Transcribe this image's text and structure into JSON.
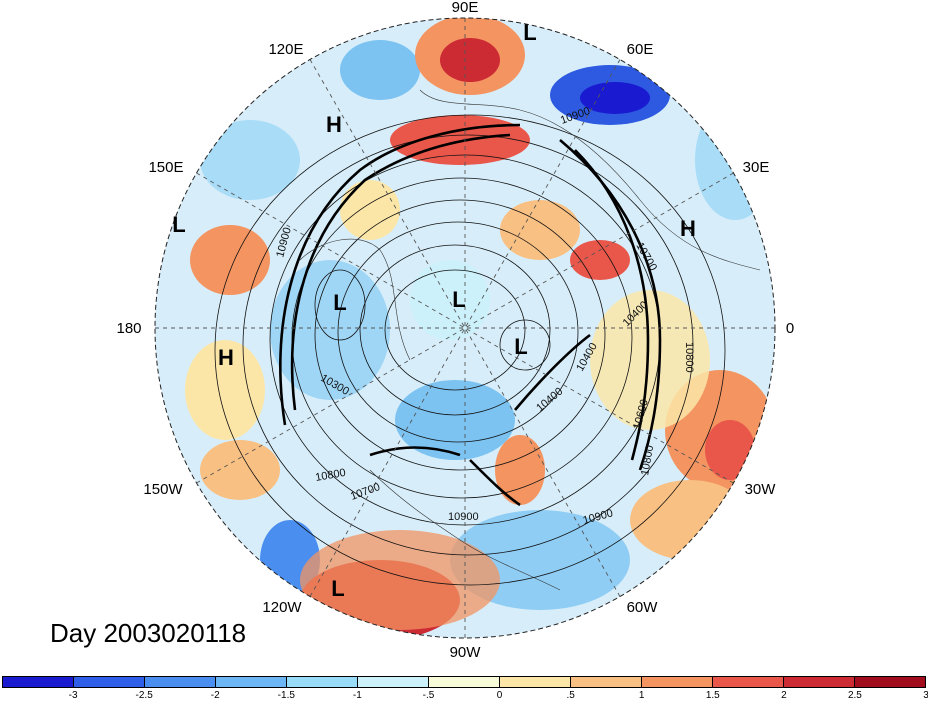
{
  "title": "Day 2003020118",
  "longitude_labels": [
    "90E",
    "60E",
    "30E",
    "0",
    "30W",
    "60W",
    "90W",
    "120W",
    "150W",
    "180",
    "150E",
    "120E"
  ],
  "pressure_centers": [
    {
      "label": "L",
      "name": "low-north-top"
    },
    {
      "label": "H",
      "name": "high-120e"
    },
    {
      "label": "L",
      "name": "low-150e"
    },
    {
      "label": "H",
      "name": "high-30e"
    },
    {
      "label": "L",
      "name": "low-pole-west"
    },
    {
      "label": "L",
      "name": "low-pole-center"
    },
    {
      "label": "L",
      "name": "low-pole-east"
    },
    {
      "label": "H",
      "name": "high-180"
    },
    {
      "label": "L",
      "name": "low-120w"
    }
  ],
  "contour_labels": [
    "10900",
    "10900",
    "10700",
    "10400",
    "10800",
    "10300",
    "10400",
    "10600",
    "10800",
    "10800",
    "10900",
    "10900",
    "10700",
    "10400"
  ],
  "colorbar": {
    "tick_labels": [
      "-3",
      "-2.5",
      "-2",
      "-1.5",
      "-1",
      "-.5",
      "0",
      ".5",
      "1",
      "1.5",
      "2",
      "2.5",
      "3"
    ],
    "colors": [
      "#1a1ad0",
      "#2f5fe8",
      "#4a8ef0",
      "#6cb6f5",
      "#99dcf8",
      "#cdf1fb",
      "#f7fbd8",
      "#fbe6a8",
      "#f9c083",
      "#f39461",
      "#e9564a",
      "#cd2b34",
      "#a20d1e"
    ]
  }
}
